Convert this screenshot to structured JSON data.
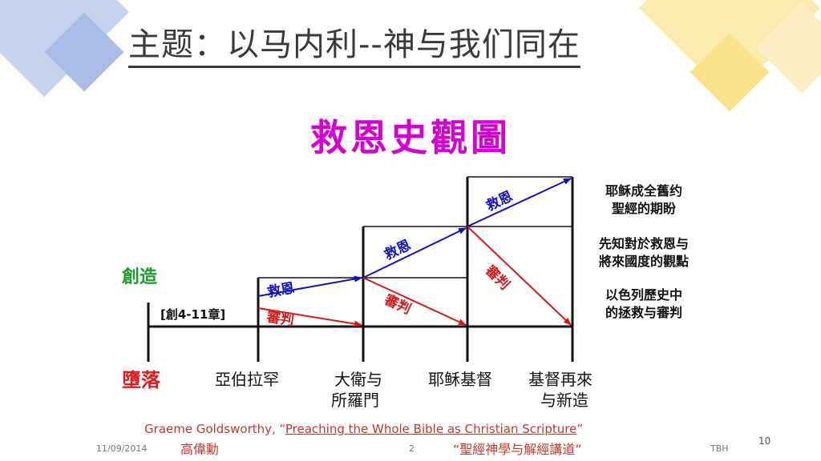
{
  "slide": {
    "title": "主题：以马内利--神与我们同在",
    "subtitle": "救恩史觀圖",
    "page_number": "10"
  },
  "diagram": {
    "left_top_label": "創造",
    "left_bottom_label": "墮落",
    "bracket_label": "[創4-11章]",
    "arrow_labels": {
      "salvation_1": "救恩",
      "judgment_1": "審判",
      "salvation_2": "救恩",
      "judgment_2": "審判",
      "salvation_3": "救恩",
      "judgment_3": "審判"
    },
    "x_labels": [
      "亞伯拉罕",
      "大衛与",
      "所羅門",
      "耶稣基督",
      "基督再來",
      "与新造"
    ],
    "side_notes": [
      {
        "line1": "耶稣成全舊约",
        "line2": "聖經的期盼"
      },
      {
        "line1": "先知對於救恩与",
        "line2": "將來國度的觀點"
      },
      {
        "line1": "以色列歷史中",
        "line2": "的拯救与審判"
      }
    ]
  },
  "footer": {
    "citation_author": "Graeme Goldsworthy, “",
    "citation_title": "Preaching the Whole Bible as Christian Scripture",
    "citation_end": "”",
    "translator": "高偉勳",
    "translated_title": "“聖經神學与解經講道”",
    "date": "11/09/2014",
    "slide_no": "2",
    "initials": "TBH"
  },
  "colors": {
    "salvation": "#1010c8",
    "judgment": "#d81818",
    "title_magenta": "#d400d4",
    "deco_blue": "#a9bde6",
    "deco_yellow": "#fbe28a"
  }
}
